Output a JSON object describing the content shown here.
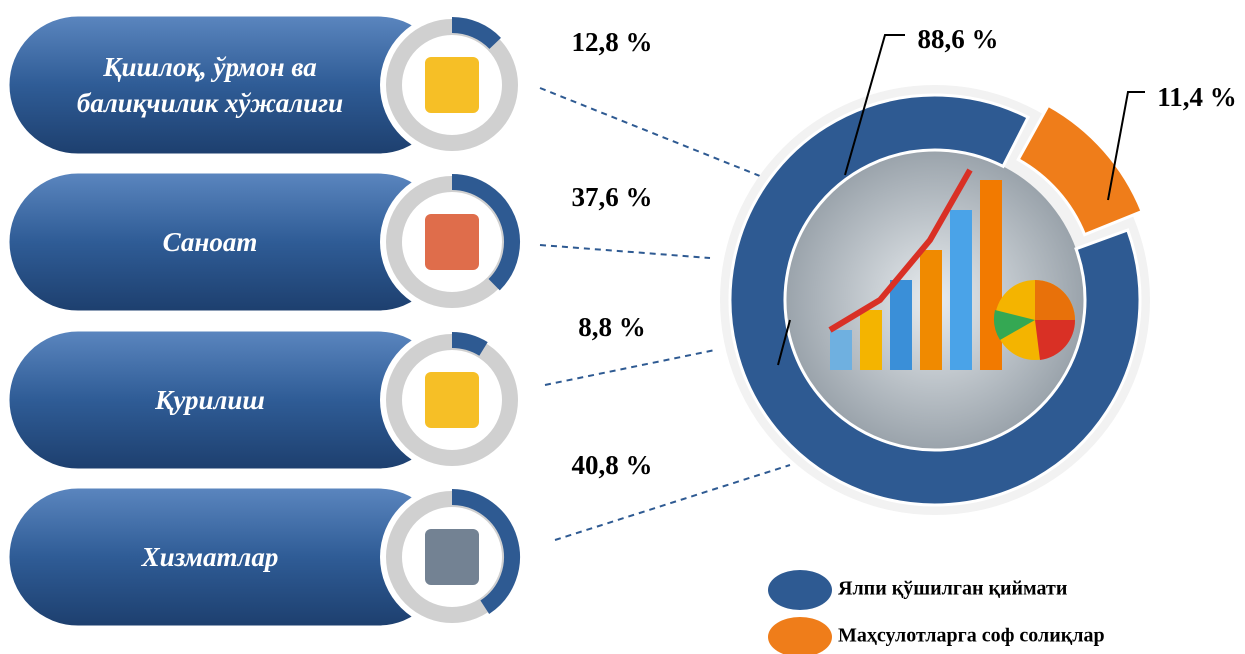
{
  "chart_data": [
    {
      "type": "gauge",
      "categories": [
        "Қишлоқ, ўрмон ва балиқчилик хўжалиги",
        "Саноат",
        "Қурилиш",
        "Хизматлар"
      ],
      "values": [
        12.8,
        37.6,
        8.8,
        40.8
      ],
      "value_labels": [
        "12,8 %",
        "37,6 %",
        "8,8 %",
        "40,8 %"
      ],
      "color": "#2e5a92"
    },
    {
      "type": "pie",
      "categories": [
        "Ялпи қўшилган қиймати",
        "Маҳсулотларга соф солиқлар"
      ],
      "values": [
        88.6,
        11.4
      ],
      "value_labels": [
        "88,6 %",
        "11,4 %"
      ],
      "colors": [
        "#2e5a92",
        "#ef7d1a"
      ]
    }
  ]
}
